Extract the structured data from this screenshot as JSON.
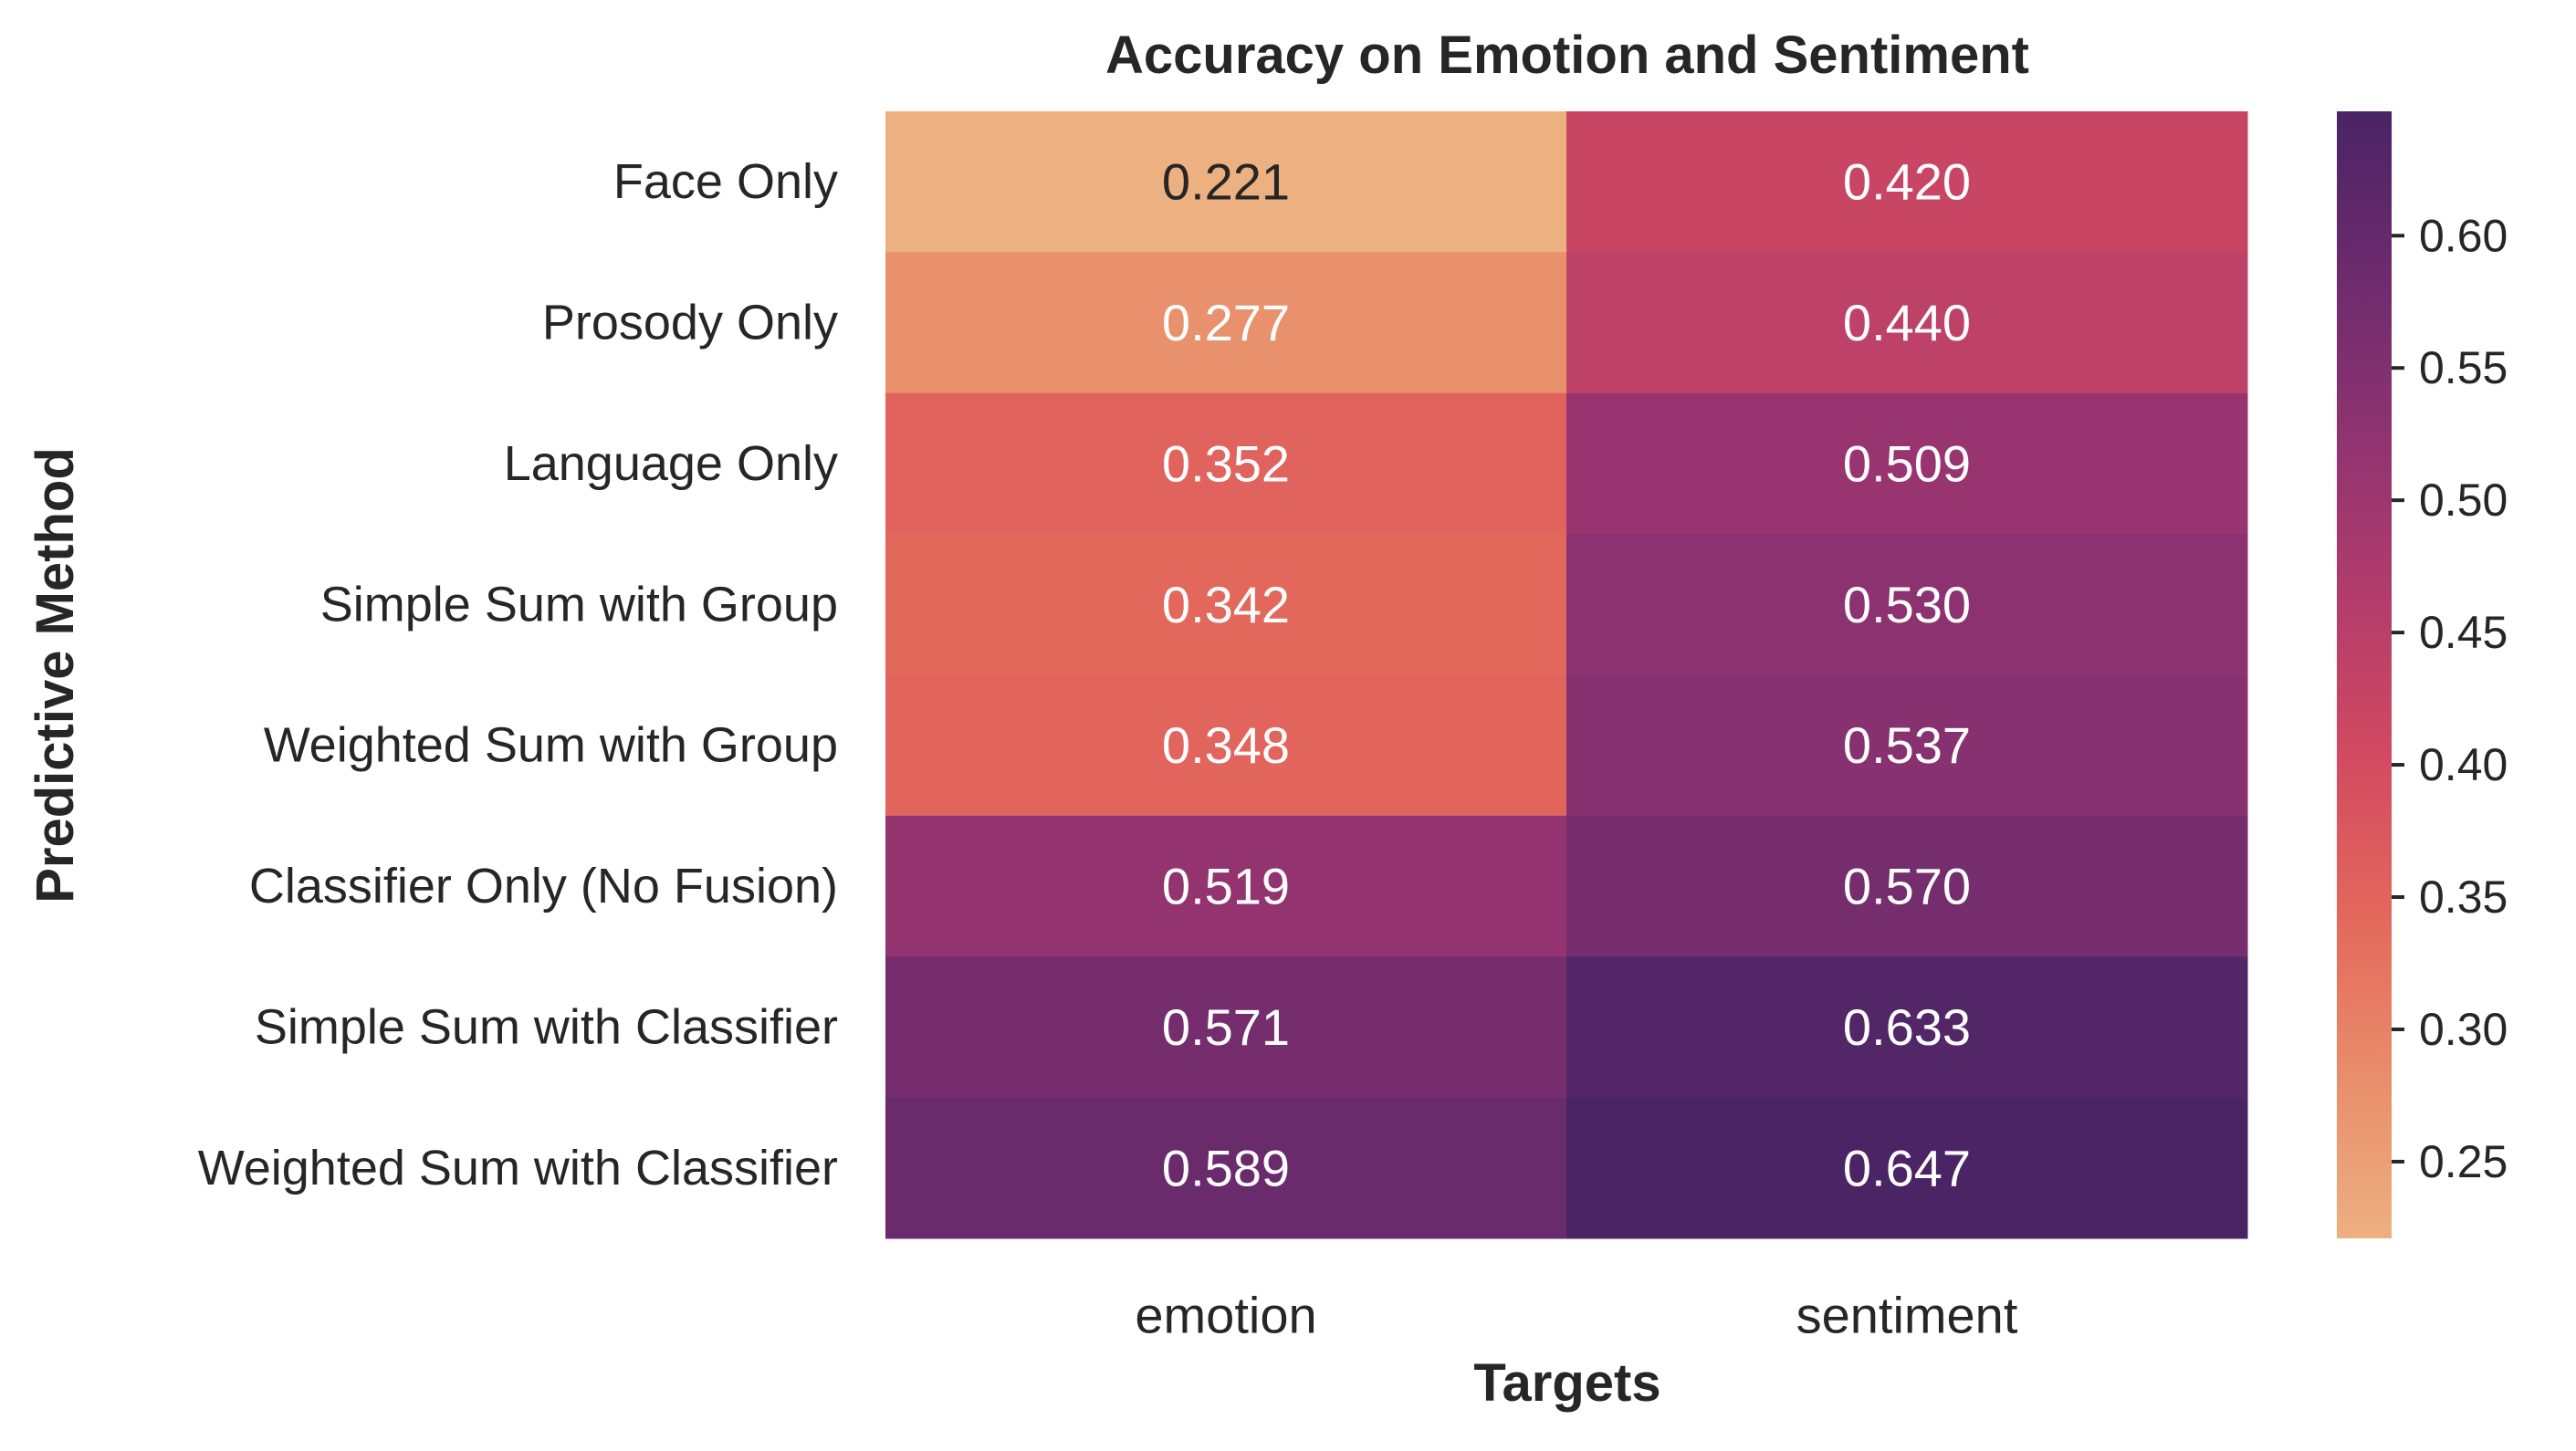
{
  "chart_data": {
    "type": "heatmap",
    "title": "Accuracy on Emotion and Sentiment",
    "xlabel": "Targets",
    "ylabel": "Predictive Method",
    "columns": [
      "emotion",
      "sentiment"
    ],
    "rows": [
      "Face Only",
      "Prosody Only",
      "Language Only",
      "Simple Sum with Group",
      "Weighted Sum with Group",
      "Classifier Only (No Fusion)",
      "Simple Sum with Classifier",
      "Weighted Sum with Classifier"
    ],
    "values": [
      [
        0.221,
        0.42
      ],
      [
        0.277,
        0.44
      ],
      [
        0.352,
        0.509
      ],
      [
        0.342,
        0.53
      ],
      [
        0.348,
        0.537
      ],
      [
        0.519,
        0.57
      ],
      [
        0.571,
        0.633
      ],
      [
        0.589,
        0.647
      ]
    ],
    "cell_labels": [
      [
        "0.221",
        "0.420"
      ],
      [
        "0.277",
        "0.440"
      ],
      [
        "0.352",
        "0.509"
      ],
      [
        "0.342",
        "0.530"
      ],
      [
        "0.348",
        "0.537"
      ],
      [
        "0.519",
        "0.570"
      ],
      [
        "0.571",
        "0.633"
      ],
      [
        "0.589",
        "0.647"
      ]
    ],
    "colorbar": {
      "vmin": 0.221,
      "vmax": 0.647,
      "ticks": [
        0.25,
        0.3,
        0.35,
        0.4,
        0.45,
        0.5,
        0.55,
        0.6
      ],
      "tick_labels": [
        "0.25",
        "0.30",
        "0.35",
        "0.40",
        "0.45",
        "0.50",
        "0.55",
        "0.60"
      ],
      "colormap": "flare",
      "color_stops": [
        "#edb081",
        "#e98d6b",
        "#e3685c",
        "#d14a61",
        "#b13c6c",
        "#8f3371",
        "#6c2b6d",
        "#4a2465"
      ]
    },
    "text_colors": {
      "dark": "#262626",
      "light": "#ffffff"
    },
    "grid": false
  }
}
